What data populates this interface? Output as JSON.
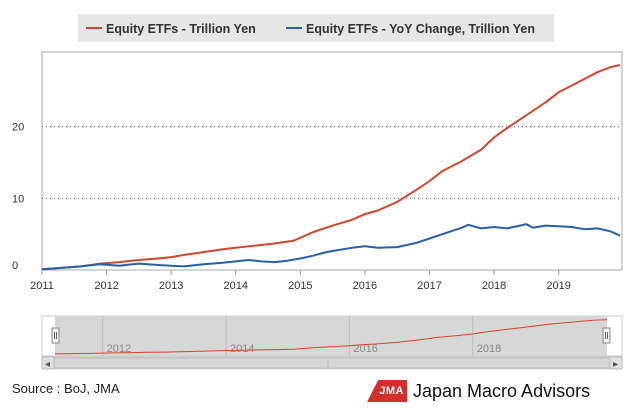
{
  "chart_data": {
    "type": "line",
    "title": "",
    "xlabel": "",
    "ylabel": "",
    "x_tick_labels": [
      "2011",
      "2012",
      "2013",
      "2014",
      "2015",
      "2016",
      "2017",
      "2018",
      "2019"
    ],
    "x_domain": [
      2011.0,
      2019.95
    ],
    "y_ticks": [
      0,
      10,
      20
    ],
    "ylim": [
      0,
      30
    ],
    "grid": "horizontal dotted",
    "legend_position": "top",
    "series": [
      {
        "name": "Equity ETFs - Trillion Yen",
        "color": "#d2472b",
        "x": [
          2011.0,
          2011.3,
          2011.6,
          2011.9,
          2012.2,
          2012.5,
          2012.8,
          2013.0,
          2013.2,
          2013.5,
          2013.8,
          2014.0,
          2014.3,
          2014.6,
          2014.9,
          2015.0,
          2015.2,
          2015.5,
          2015.8,
          2016.0,
          2016.2,
          2016.5,
          2016.8,
          2017.0,
          2017.2,
          2017.5,
          2017.8,
          2018.0,
          2018.2,
          2018.5,
          2018.8,
          2019.0,
          2019.3,
          2019.6,
          2019.8,
          2019.95
        ],
        "values": [
          0.1,
          0.3,
          0.5,
          0.9,
          1.1,
          1.4,
          1.6,
          1.8,
          2.1,
          2.5,
          2.9,
          3.1,
          3.4,
          3.7,
          4.1,
          4.5,
          5.3,
          6.2,
          7.0,
          7.8,
          8.3,
          9.5,
          11.2,
          12.4,
          13.8,
          15.2,
          16.8,
          18.5,
          19.8,
          21.6,
          23.4,
          24.8,
          26.2,
          27.6,
          28.3,
          28.6
        ]
      },
      {
        "name": "Equity ETFs - YoY Change, Trillion Yen",
        "color": "#2a5ea8",
        "x": [
          2011.0,
          2011.3,
          2011.6,
          2011.9,
          2012.2,
          2012.5,
          2012.8,
          2013.0,
          2013.2,
          2013.5,
          2013.8,
          2014.0,
          2014.2,
          2014.4,
          2014.6,
          2014.8,
          2015.0,
          2015.2,
          2015.4,
          2015.6,
          2015.8,
          2016.0,
          2016.2,
          2016.5,
          2016.8,
          2017.0,
          2017.2,
          2017.5,
          2017.6,
          2017.8,
          2018.0,
          2018.2,
          2018.4,
          2018.5,
          2018.6,
          2018.8,
          2019.0,
          2019.2,
          2019.4,
          2019.6,
          2019.8,
          2019.95
        ],
        "values": [
          0.1,
          0.3,
          0.5,
          0.8,
          0.6,
          0.9,
          0.7,
          0.6,
          0.5,
          0.8,
          1.0,
          1.2,
          1.4,
          1.2,
          1.1,
          1.3,
          1.6,
          2.0,
          2.5,
          2.8,
          3.1,
          3.3,
          3.1,
          3.2,
          3.8,
          4.4,
          5.0,
          5.9,
          6.3,
          5.8,
          6.0,
          5.8,
          6.2,
          6.4,
          5.9,
          6.2,
          6.1,
          6.0,
          5.7,
          5.8,
          5.4,
          4.8
        ]
      }
    ]
  },
  "navigator": {
    "year_labels": [
      "2012",
      "2014",
      "2016",
      "2018"
    ],
    "scroll_left_glyph": "◂",
    "scroll_right_glyph": "▸",
    "scroll_grip_glyph": "⦙"
  },
  "footer": {
    "source": "Source : BoJ, JMA",
    "brand_logo": "JMA",
    "brand_name": "Japan Macro Advisors"
  }
}
